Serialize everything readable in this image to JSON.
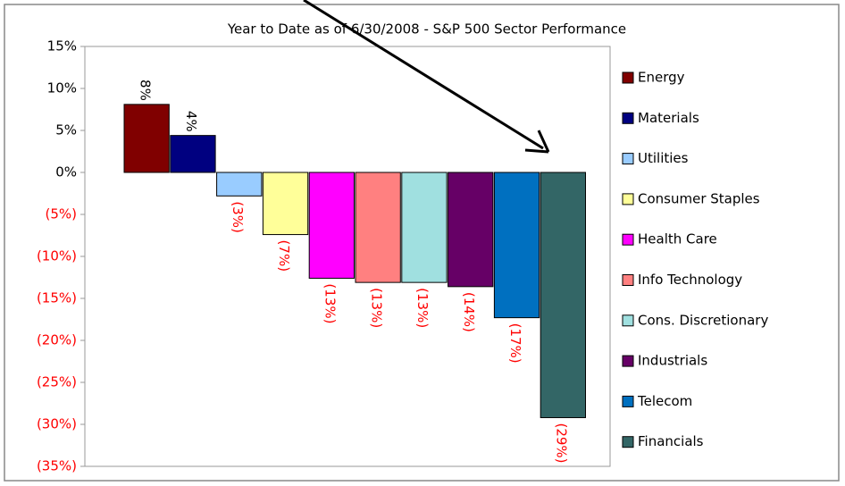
{
  "chart_data": {
    "type": "bar",
    "title": "Year to Date as of 6/30/2008 - S&P 500 Sector Performance",
    "categories": [
      "Energy",
      "Materials",
      "Utilities",
      "Consumer Staples",
      "Health Care",
      "Info Technology",
      "Cons. Discretionary",
      "Industrials",
      "Telecom",
      "Financials"
    ],
    "values": [
      8.1,
      4.4,
      -2.8,
      -7.4,
      -12.6,
      -13.1,
      -13.1,
      -13.6,
      -17.3,
      -29.2
    ],
    "value_labels": [
      "8%",
      "4%",
      "(3%)",
      "(7%)",
      "(13%)",
      "(13%)",
      "(13%)",
      "(14%)",
      "(17%)",
      "(29%)"
    ],
    "colors": [
      "#800000",
      "#000080",
      "#99ccff",
      "#ffff99",
      "#ff00ff",
      "#ff8080",
      "#a0e0e0",
      "#660066",
      "#0070c0",
      "#336666"
    ],
    "ylim": [
      -35,
      15
    ],
    "yticks": [
      {
        "value": 15,
        "label": "15%"
      },
      {
        "value": 10,
        "label": "10%"
      },
      {
        "value": 5,
        "label": "5%"
      },
      {
        "value": 0,
        "label": "0%"
      },
      {
        "value": -5,
        "label": "(5%)"
      },
      {
        "value": -10,
        "label": "(10%)"
      },
      {
        "value": -15,
        "label": "(15%)"
      },
      {
        "value": -20,
        "label": "(20%)"
      },
      {
        "value": -25,
        "label": "(25%)"
      },
      {
        "value": -30,
        "label": "(30%)"
      },
      {
        "value": -35,
        "label": "(35%)"
      }
    ],
    "grid": false,
    "legend": "right"
  }
}
